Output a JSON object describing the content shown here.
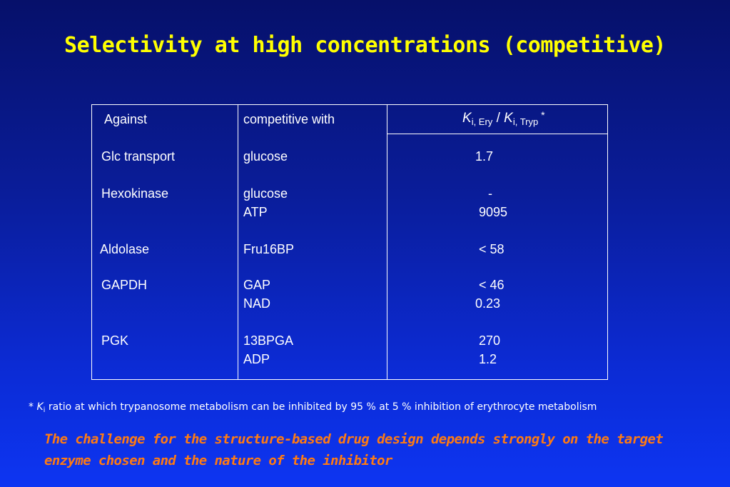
{
  "title": "Selectivity at high concentrations (competitive)",
  "table": {
    "headers": {
      "against": "Against",
      "competitive_with": "competitive with",
      "ratio": {
        "k1": "K",
        "sub1": "i, Ery",
        "slash": " / ",
        "k2": "K",
        "sub2": "i, Tryp",
        "star": " *"
      }
    },
    "rows": [
      {
        "against": "Glc transport",
        "competitive_with": "glucose",
        "ratio": "1.7"
      },
      {
        "against": "Hexokinase",
        "competitive_with": "glucose",
        "ratio": "-"
      },
      {
        "against": "",
        "competitive_with": "ATP",
        "ratio": "9095"
      },
      {
        "against": "Aldolase",
        "competitive_with": "Fru16BP",
        "ratio": "< 58"
      },
      {
        "against": "GAPDH",
        "competitive_with": "GAP",
        "ratio": "< 46"
      },
      {
        "against": "",
        "competitive_with": "NAD",
        "ratio": "0.23"
      },
      {
        "against": "PGK",
        "competitive_with": "13BPGA",
        "ratio": "270"
      },
      {
        "against": "",
        "competitive_with": "ADP",
        "ratio": "1.2"
      }
    ]
  },
  "footnote": {
    "star": "* ",
    "k": "K",
    "sub": "i",
    "text": " ratio at which trypanosome metabolism can be inhibited by 95 % at 5 % inhibition of erythrocyte metabolism"
  },
  "conclusion": "The challenge for the structure-based drug design depends strongly on the target enzyme chosen and the nature of the inhibitor",
  "colors": {
    "title": "#ffff00",
    "conclusion": "#ff7b12",
    "background_top": "#06106a",
    "background_bottom": "#0d35f2"
  }
}
